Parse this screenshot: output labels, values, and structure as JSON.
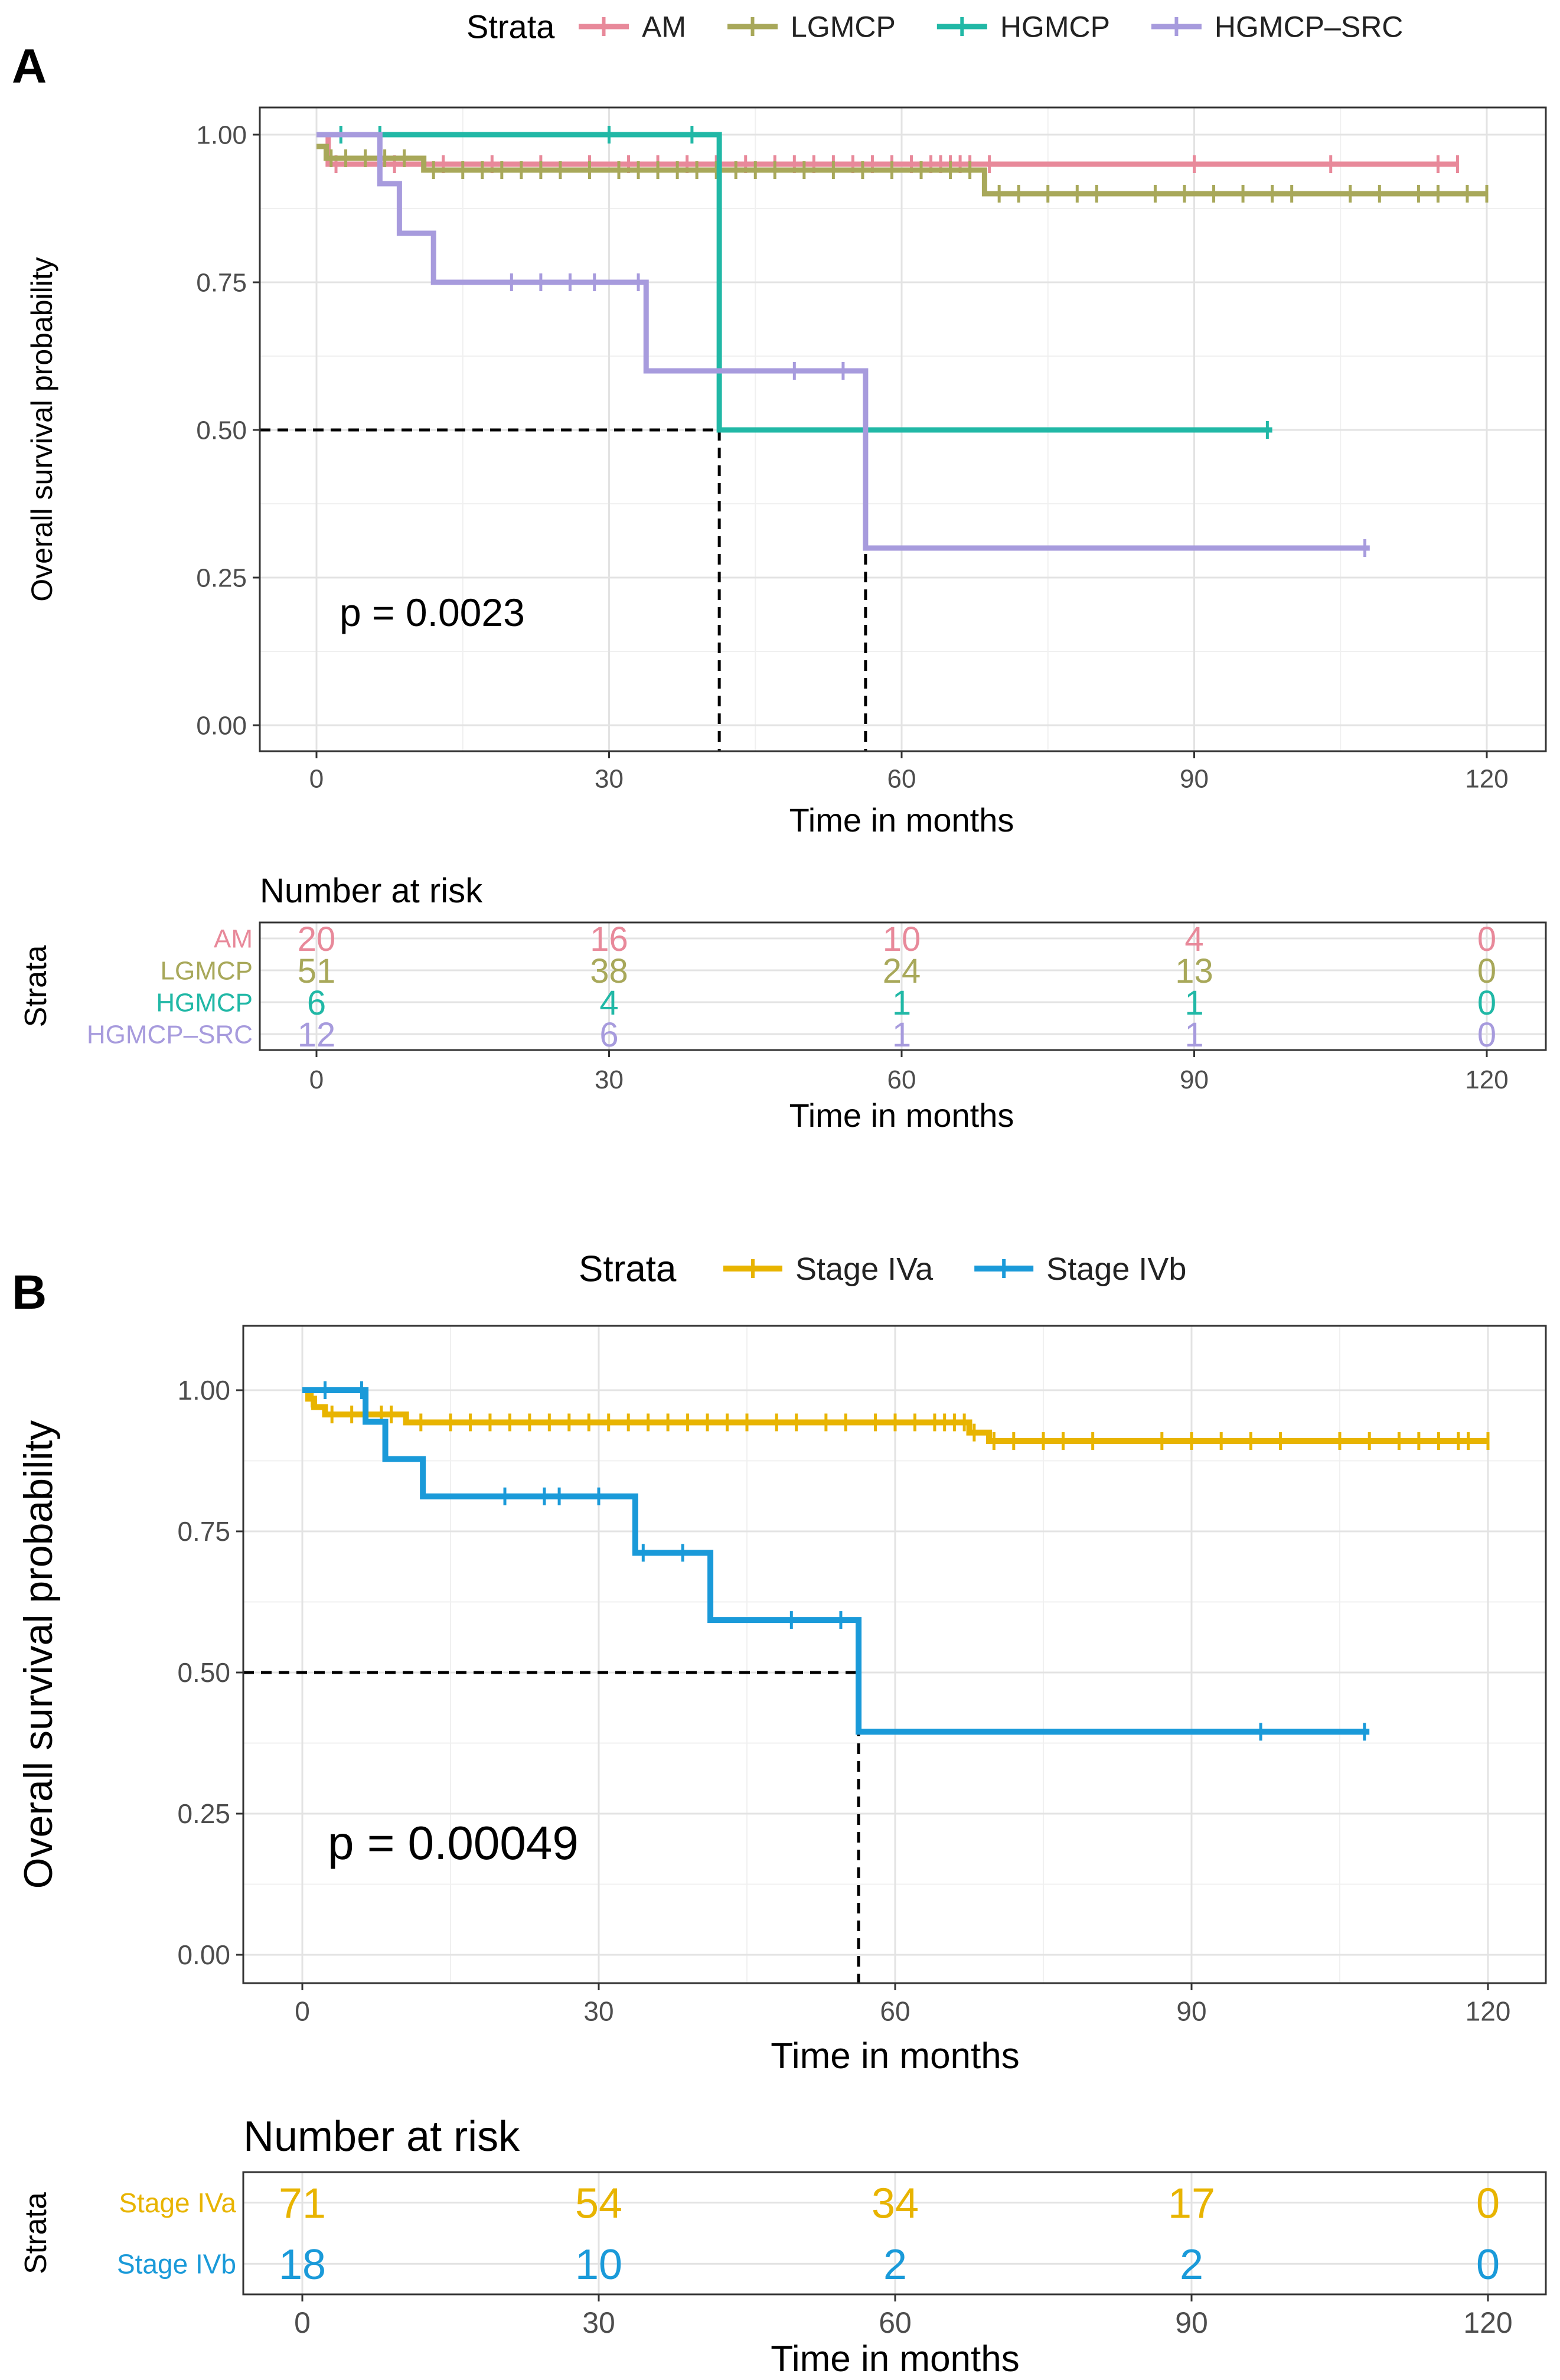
{
  "chart_data": [
    {
      "type": "line",
      "panel_label": "A",
      "ylabel": "Overall survival probability",
      "xlabel": "Time in months",
      "xlim": [
        0,
        120
      ],
      "ylim": [
        0,
        1
      ],
      "x_ticks": [
        "0",
        "30",
        "60",
        "90",
        "120"
      ],
      "y_ticks": [
        "0.00",
        "0.25",
        "0.50",
        "0.75",
        "1.00"
      ],
      "grid": true,
      "legend": {
        "title": "Strata",
        "position": "top",
        "entries": [
          "AM",
          "LGMCP",
          "HGMCP",
          "HGMCP–SRC"
        ]
      },
      "pvalue_text": "p = 0.0023",
      "median_lines": [
        {
          "time": 41.3,
          "level": 0.5
        },
        {
          "time": 56.3,
          "level": 0.5
        }
      ],
      "series": [
        {
          "name": "AM",
          "color": "#E8899A",
          "steps": [
            [
              0,
              1.0
            ],
            [
              1.2,
              0.95
            ],
            [
              117,
              0.95
            ]
          ],
          "censor_times": [
            2,
            8,
            13,
            18,
            23,
            28,
            32,
            35,
            38,
            41,
            44,
            47,
            49,
            51,
            53,
            55,
            57,
            59,
            61,
            63,
            64,
            65,
            66,
            67,
            69,
            90,
            104,
            115,
            117
          ]
        },
        {
          "name": "LGMCP",
          "color": "#A8A85A",
          "steps": [
            [
              0,
              0.98
            ],
            [
              1,
              0.96
            ],
            [
              11,
              0.94
            ],
            [
              68.5,
              0.9
            ],
            [
              120,
              0.9
            ]
          ],
          "censor_times": [
            1.5,
            3,
            5,
            7,
            9,
            12,
            15,
            17,
            19,
            21,
            23,
            25,
            28,
            31,
            33,
            35,
            37,
            39,
            41,
            43,
            45,
            47,
            50,
            53,
            56,
            59,
            62,
            65,
            67,
            70,
            72,
            75,
            78,
            80,
            86,
            89,
            92,
            95,
            98,
            100,
            106,
            109,
            113,
            115,
            118,
            120
          ]
        },
        {
          "name": "HGMCP",
          "color": "#21B8A6",
          "steps": [
            [
              0,
              1.0
            ],
            [
              41.3,
              0.5
            ],
            [
              98,
              0.5
            ]
          ],
          "censor_times": [
            2.5,
            6.5,
            30,
            38.5,
            97.5
          ]
        },
        {
          "name": "HGMCP–SRC",
          "color": "#A79BDD",
          "steps": [
            [
              0,
              1.0
            ],
            [
              6.5,
              0.917
            ],
            [
              8.5,
              0.833
            ],
            [
              12,
              0.75
            ],
            [
              33.8,
              0.6
            ],
            [
              56.3,
              0.3
            ],
            [
              108,
              0.3
            ]
          ],
          "censor_times": [
            20,
            23,
            26,
            28.5,
            33,
            49,
            54,
            107.5
          ]
        }
      ],
      "risk_table": {
        "title": "Number at risk",
        "ylabel": "Strata",
        "xlabel": "Time in months",
        "times": [
          "0",
          "30",
          "60",
          "90",
          "120"
        ],
        "rows": [
          {
            "name": "AM",
            "counts": [
              "20",
              "16",
              "10",
              "4",
              "0"
            ]
          },
          {
            "name": "LGMCP",
            "counts": [
              "51",
              "38",
              "24",
              "13",
              "0"
            ]
          },
          {
            "name": "HGMCP",
            "counts": [
              "6",
              "4",
              "1",
              "1",
              "0"
            ]
          },
          {
            "name": "HGMCP–SRC",
            "counts": [
              "12",
              "6",
              "1",
              "1",
              "0"
            ]
          }
        ]
      }
    },
    {
      "type": "line",
      "panel_label": "B",
      "ylabel": "Overall survival probability",
      "xlabel": "Time in months",
      "xlim": [
        0,
        120
      ],
      "ylim": [
        0,
        1
      ],
      "x_ticks": [
        "0",
        "30",
        "60",
        "90",
        "120"
      ],
      "y_ticks": [
        "0.00",
        "0.25",
        "0.50",
        "0.75",
        "1.00"
      ],
      "grid": true,
      "legend": {
        "title": "Strata",
        "position": "top",
        "entries": [
          "Stage IVa",
          "Stage IVb"
        ]
      },
      "pvalue_text": "p = 0.00049",
      "median_lines": [
        {
          "time": 56.3,
          "level": 0.5
        }
      ],
      "series": [
        {
          "name": "Stage IVa",
          "color": "#E8B400",
          "steps": [
            [
              0,
              1.0
            ],
            [
              0.6,
              0.985
            ],
            [
              1.2,
              0.97
            ],
            [
              2.3,
              0.957
            ],
            [
              10.5,
              0.943
            ],
            [
              67.5,
              0.925
            ],
            [
              69.5,
              0.91
            ],
            [
              120,
              0.91
            ]
          ],
          "censor_times": [
            1,
            3,
            5,
            8,
            9,
            12,
            15,
            17,
            19,
            21,
            23,
            25,
            27,
            29,
            31,
            33,
            35,
            37,
            39,
            41,
            43,
            45,
            48,
            50,
            53,
            55,
            58,
            60,
            62,
            64,
            65,
            66,
            67,
            68,
            70,
            72,
            75,
            77,
            80,
            87,
            90,
            93,
            96,
            99,
            105,
            108,
            111,
            113,
            115,
            117,
            118,
            120
          ]
        },
        {
          "name": "Stage IVb",
          "color": "#1A9AD9",
          "steps": [
            [
              0,
              1.0
            ],
            [
              1.8,
              1.0
            ],
            [
              6.4,
              0.944
            ],
            [
              8.4,
              0.878
            ],
            [
              12.2,
              0.812
            ],
            [
              33.7,
              0.712
            ],
            [
              41.3,
              0.593
            ],
            [
              56.3,
              0.395
            ],
            [
              108,
              0.395
            ]
          ],
          "censor_times": [
            2.3,
            6,
            20.5,
            24.5,
            26,
            30,
            34.5,
            38.5,
            49.5,
            54.5,
            97,
            107.5
          ]
        }
      ],
      "risk_table": {
        "title": "Number at risk",
        "ylabel": "Strata",
        "xlabel": "Time in months",
        "times": [
          "0",
          "30",
          "60",
          "90",
          "120"
        ],
        "rows": [
          {
            "name": "Stage IVa",
            "counts": [
              "71",
              "54",
              "34",
              "17",
              "0"
            ]
          },
          {
            "name": "Stage IVb",
            "counts": [
              "18",
              "10",
              "2",
              "2",
              "0"
            ]
          }
        ]
      }
    }
  ]
}
